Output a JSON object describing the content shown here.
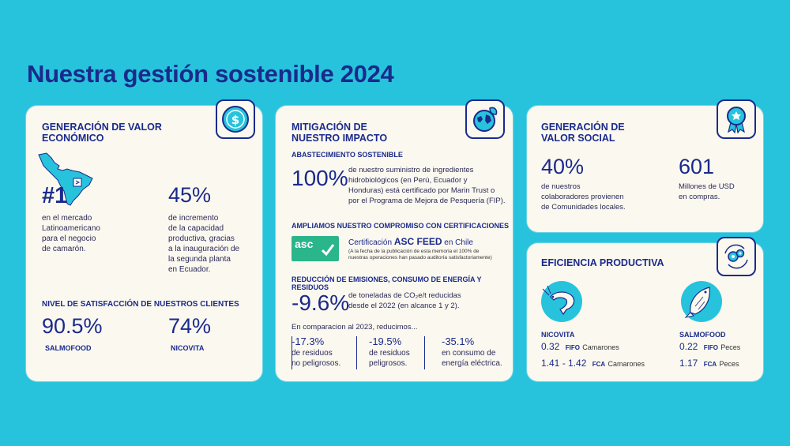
{
  "page": {
    "title": "Nuestra gestión sostenible 2024"
  },
  "colors": {
    "background": "#27c3dc",
    "navy": "#1a2a8c",
    "card": "#fbf8ef",
    "accent": "#27c3dc"
  },
  "econ": {
    "title_l1": "GENERACIÓN DE VALOR",
    "title_l2": "ECONÓMICO",
    "icon": "dollar-coin-icon",
    "rank_value": "#1",
    "rank_text": [
      "en el mercado",
      "Latinoamericano",
      "para el negocio",
      "de camarón."
    ],
    "capacity_value": "45%",
    "capacity_text": [
      "de incremento",
      "de la capacidad",
      "productiva, gracias",
      "a la inauguración de",
      "la segunda planta",
      "en Ecuador."
    ],
    "satisfaction_title": "NIVEL DE SATISFACCIÓN DE NUESTROS CLIENTES",
    "sat1_value": "90.5%",
    "sat1_label": "SALMOFOOD",
    "sat2_value": "74%",
    "sat2_label": "NICOVITA"
  },
  "impact": {
    "title_l1": "MITIGACIÓN DE",
    "title_l2": "NUESTRO IMPACTO",
    "icon": "globe-leaf-icon",
    "sourcing_title": "ABASTECIMIENTO SOSTENIBLE",
    "sourcing_value": "100%",
    "sourcing_text": [
      "de nuestro suministro de ingredientes",
      "hidrobiológicos (en Perú, Ecuador y",
      "Honduras) está certificado por Marin Trust o",
      "por el Programa de Mejora de Pesquería (FIP)."
    ],
    "cert_title": "AMPLIAMOS NUESTRO COMPROMISO CON CERTIFICACIONES",
    "cert_logo_text": "asc",
    "cert_pre": "Certificación ",
    "cert_strong": "ASC FEED",
    "cert_post": " en Chile",
    "cert_note": [
      "(A la fecha de la publicación de esta memoria el 100% de",
      "nuestras operaciones han pasado auditoría satisfactoriamente)"
    ],
    "emissions_title": "REDUCCIÓN DE EMISIONES, CONSUMO DE ENERGÍA Y RESIDUOS",
    "emissions_value": "-9.6%",
    "emissions_text": [
      "de toneladas de CO₂e/t reducidas",
      "desde el 2022 (en alcance 1 y 2)."
    ],
    "compare_text": "En comparacion al 2023, reducimos...",
    "reductions": [
      {
        "value": "-17.3%",
        "l1": "de residuos",
        "l2": "no peligrosos."
      },
      {
        "value": "-19.5%",
        "l1": "de residuos",
        "l2": "peligrosos."
      },
      {
        "value": "-35.1%",
        "l1": "en consumo de",
        "l2": "energía eléctrica."
      }
    ]
  },
  "social": {
    "title_l1": "GENERACIÓN DE",
    "title_l2": "VALOR SOCIAL",
    "icon": "award-ribbon-icon",
    "collab_value": "40%",
    "collab_text": [
      "de nuestros",
      "colaboradores provienen",
      "de Comunidades locales."
    ],
    "purchase_value": "601",
    "purchase_text": [
      "Millones de USD",
      "en compras."
    ]
  },
  "efficiency": {
    "title": "EFICIENCIA PRODUCTIVA",
    "icon": "gears-cycle-icon",
    "nicovita_label": "NICOVITA",
    "nicovita_fifo_value": "0.32",
    "nicovita_fifo_tag": "FIFO",
    "nicovita_fifo_unit": "Camarones",
    "nicovita_fca_value": "1.41 - 1.42",
    "nicovita_fca_tag": "FCA",
    "nicovita_fca_unit": "Camarones",
    "salmofood_label": "SALMOFOOD",
    "salmofood_fifo_value": "0.22",
    "salmofood_fifo_tag": "FIFO",
    "salmofood_fifo_unit": "Peces",
    "salmofood_fca_value": "1.17",
    "salmofood_fca_tag": "FCA",
    "salmofood_fca_unit": "Peces"
  }
}
